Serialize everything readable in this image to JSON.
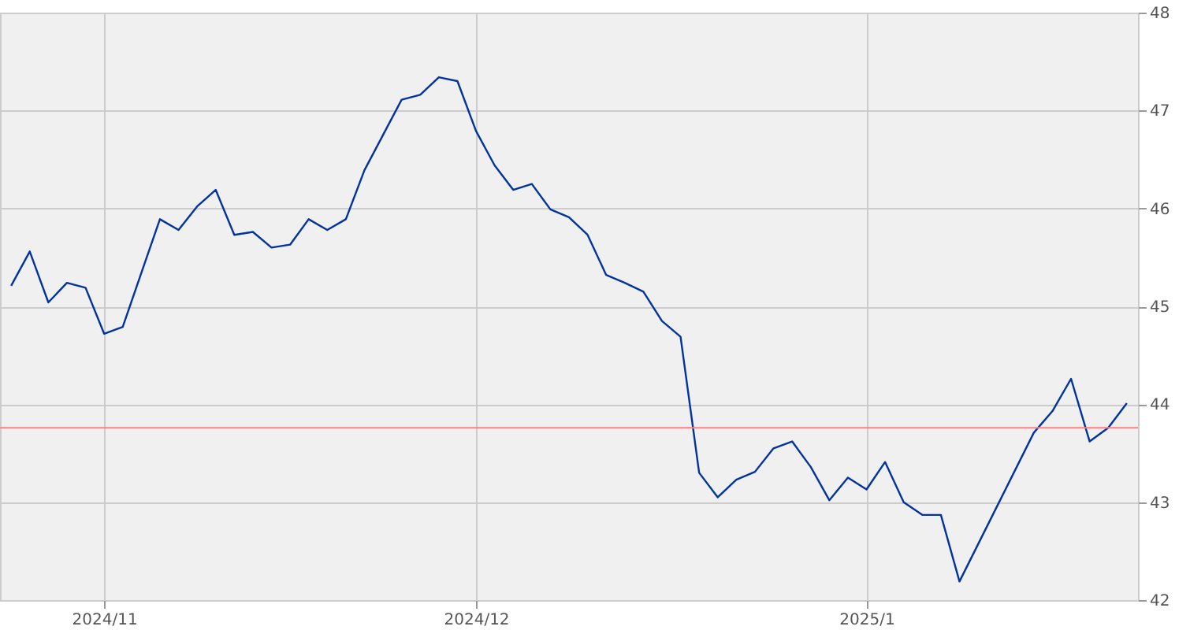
{
  "chart_data": {
    "type": "line",
    "categories": [
      null,
      null,
      null,
      null,
      null,
      "2024/11",
      null,
      null,
      null,
      null,
      null,
      null,
      null,
      null,
      null,
      null,
      null,
      null,
      null,
      null,
      null,
      null,
      null,
      null,
      null,
      "2024/12",
      null,
      null,
      null,
      null,
      null,
      null,
      null,
      null,
      null,
      null,
      null,
      null,
      null,
      null,
      null,
      null,
      null,
      null,
      null,
      null,
      "2025/1",
      null,
      null,
      null,
      null,
      null,
      null,
      null,
      null,
      null,
      null,
      null,
      null,
      null,
      null
    ],
    "series": [
      {
        "color": "#0033a0",
        "values": [
          45.21,
          45.56,
          45.04,
          45.24,
          45.19,
          44.72,
          44.79,
          45.34,
          45.89,
          45.78,
          46.02,
          46.19,
          45.73,
          45.76,
          45.6,
          45.63,
          45.89,
          45.78,
          45.89,
          46.39,
          46.75,
          47.11,
          47.16,
          47.34,
          47.3,
          46.79,
          46.44,
          46.19,
          46.25,
          45.99,
          45.91,
          45.73,
          45.32,
          45.24,
          45.15,
          44.85,
          44.69,
          43.3,
          43.05,
          43.23,
          43.31,
          43.55,
          43.62,
          43.36,
          43.02,
          43.25,
          43.13,
          43.41,
          43.0,
          42.87,
          42.87,
          42.19,
          42.57,
          42.95,
          43.33,
          43.71,
          43.93,
          44.26,
          43.62,
          43.76,
          44.01
        ]
      }
    ],
    "ylim": [
      42,
      48
    ],
    "yticks": [
      42,
      43,
      44,
      45,
      46,
      47,
      48
    ],
    "grid": true,
    "marker": "none",
    "line_style": "solid",
    "ref_lines": [
      {
        "axis": "y",
        "value": 43.76,
        "color": "#ff8080"
      }
    ]
  }
}
